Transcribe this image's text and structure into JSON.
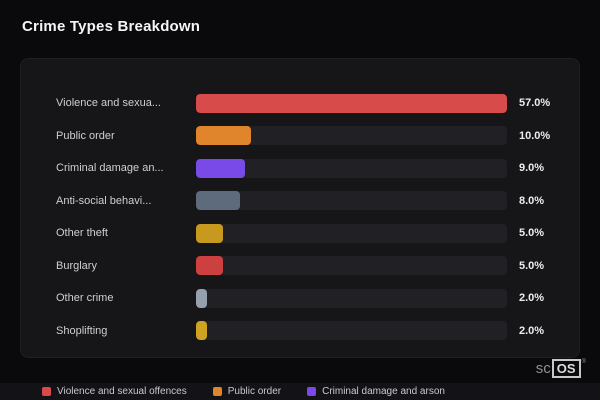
{
  "header": {
    "title": "Crime Types Breakdown"
  },
  "chart_data": {
    "type": "bar",
    "orientation": "horizontal",
    "title": "Crime Types Breakdown",
    "categories": [
      "Violence and sexua...",
      "Public order",
      "Criminal damage an...",
      "Anti-social behavi...",
      "Other theft",
      "Burglary",
      "Other crime",
      "Shoplifting"
    ],
    "values": [
      57.0,
      10.0,
      9.0,
      8.0,
      5.0,
      5.0,
      2.0,
      2.0
    ],
    "value_labels": [
      "57.0%",
      "10.0%",
      "9.0%",
      "8.0%",
      "5.0%",
      "5.0%",
      "2.0%",
      "2.0%"
    ],
    "bar_colors": [
      "#d84b4b",
      "#e0852c",
      "#7a4ae8",
      "#5e6b7d",
      "#c8991f",
      "#cc4040",
      "#96a1b0",
      "#cda31f"
    ],
    "xlim": [
      0,
      57
    ],
    "grid": false,
    "legend_position": "bottom",
    "legend": [
      {
        "label": "Violence and sexual offences",
        "color": "#d84b4b"
      },
      {
        "label": "Public order",
        "color": "#e0852c"
      },
      {
        "label": "Criminal damage and arson",
        "color": "#7a4ae8"
      }
    ]
  },
  "branding": {
    "prefix": "sc",
    "suffix": "OS",
    "registered": "®"
  }
}
